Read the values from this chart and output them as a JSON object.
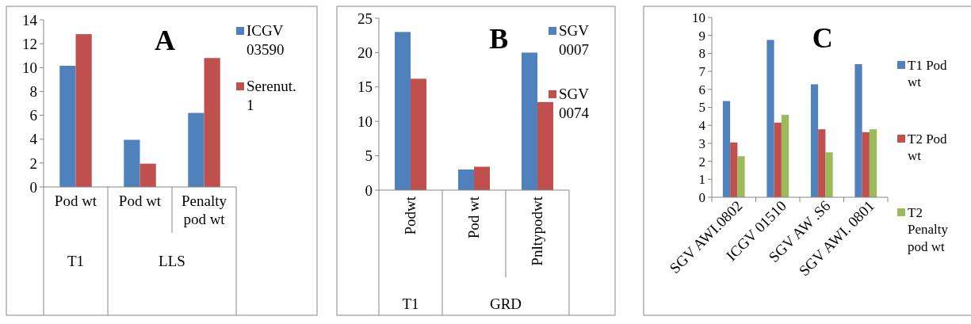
{
  "chart_data": [
    {
      "type": "bar",
      "title": "A",
      "categories": [
        "Pod wt",
        "Pod wt",
        "Penalty pod wt"
      ],
      "annotations": [
        "T1",
        "LLS"
      ],
      "series": [
        {
          "name": "ICGV 03590",
          "color": "#4f81bd",
          "values": [
            10.15,
            3.95,
            6.2
          ]
        },
        {
          "name": "Serenut. 1",
          "color": "#c0504d",
          "values": [
            12.8,
            1.95,
            10.8
          ]
        }
      ],
      "ylim": [
        0,
        14
      ],
      "yticks": [
        0,
        2,
        4,
        6,
        8,
        10,
        12,
        14
      ],
      "legend": "right",
      "grid": false
    },
    {
      "type": "bar",
      "title": "B",
      "categories": [
        "Podwt",
        "Pod wt",
        "Pnltypodwt"
      ],
      "annotations": [
        "T1",
        "GRD"
      ],
      "series": [
        {
          "name": "SGV 0007",
          "color": "#4f81bd",
          "values": [
            23,
            3,
            20
          ]
        },
        {
          "name": "SGV 0074",
          "color": "#c0504d",
          "values": [
            16.2,
            3.4,
            12.8
          ]
        }
      ],
      "ylim": [
        0,
        25
      ],
      "yticks": [
        0,
        5,
        10,
        15,
        20,
        25
      ],
      "legend": "right",
      "grid": false
    },
    {
      "type": "bar",
      "title": "C",
      "categories": [
        "SGV AWI.0802",
        "ICGV 01510",
        "SGV AW .S6",
        "SGV AWI. 0801"
      ],
      "series": [
        {
          "name": "T1 Pod wt",
          "color": "#4f81bd",
          "values": [
            5.35,
            8.75,
            6.28,
            7.4
          ]
        },
        {
          "name": "T2 Pod wt",
          "color": "#c0504d",
          "values": [
            3.05,
            4.15,
            3.78,
            3.62
          ]
        },
        {
          "name": "T2 Penalty pod wt",
          "color": "#9bbb59",
          "values": [
            2.28,
            4.58,
            2.5,
            3.78
          ]
        }
      ],
      "ylim": [
        0,
        10
      ],
      "yticks": [
        0,
        1,
        2,
        3,
        4,
        5,
        6,
        7,
        8,
        9,
        10
      ],
      "legend": "right",
      "grid": false
    }
  ]
}
